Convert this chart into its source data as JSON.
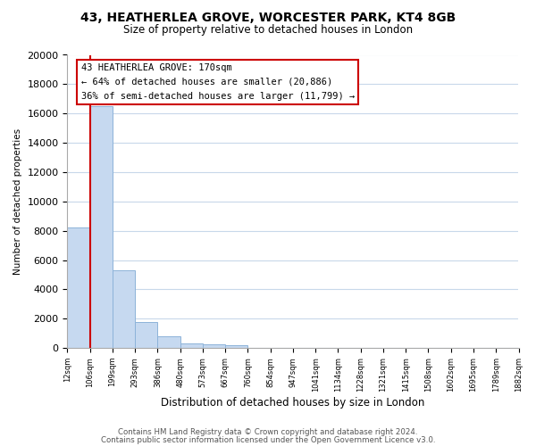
{
  "title": "43, HEATHERLEA GROVE, WORCESTER PARK, KT4 8GB",
  "subtitle": "Size of property relative to detached houses in London",
  "xlabel": "Distribution of detached houses by size in London",
  "ylabel": "Number of detached properties",
  "bar_values": [
    8200,
    16500,
    5300,
    1750,
    800,
    300,
    250,
    200,
    0,
    0,
    0,
    0,
    0,
    0,
    0,
    0,
    0,
    0,
    0,
    0
  ],
  "bin_labels": [
    "12sqm",
    "106sqm",
    "199sqm",
    "293sqm",
    "386sqm",
    "480sqm",
    "573sqm",
    "667sqm",
    "760sqm",
    "854sqm",
    "947sqm",
    "1041sqm",
    "1134sqm",
    "1228sqm",
    "1321sqm",
    "1415sqm",
    "1508sqm",
    "1602sqm",
    "1695sqm",
    "1789sqm",
    "1882sqm"
  ],
  "bar_color": "#c6d9f0",
  "bar_edge_color": "#8db3d9",
  "property_line_x": 1,
  "property_line_color": "#cc0000",
  "annotation_text_line1": "43 HEATHERLEA GROVE: 170sqm",
  "annotation_text_line2": "← 64% of detached houses are smaller (20,886)",
  "annotation_text_line3": "36% of semi-detached houses are larger (11,799) →",
  "ylim": [
    0,
    20000
  ],
  "yticks": [
    0,
    2000,
    4000,
    6000,
    8000,
    10000,
    12000,
    14000,
    16000,
    18000,
    20000
  ],
  "footer_line1": "Contains HM Land Registry data © Crown copyright and database right 2024.",
  "footer_line2": "Contains public sector information licensed under the Open Government Licence v3.0.",
  "bg_color": "#ffffff",
  "grid_color": "#c8d8ea"
}
